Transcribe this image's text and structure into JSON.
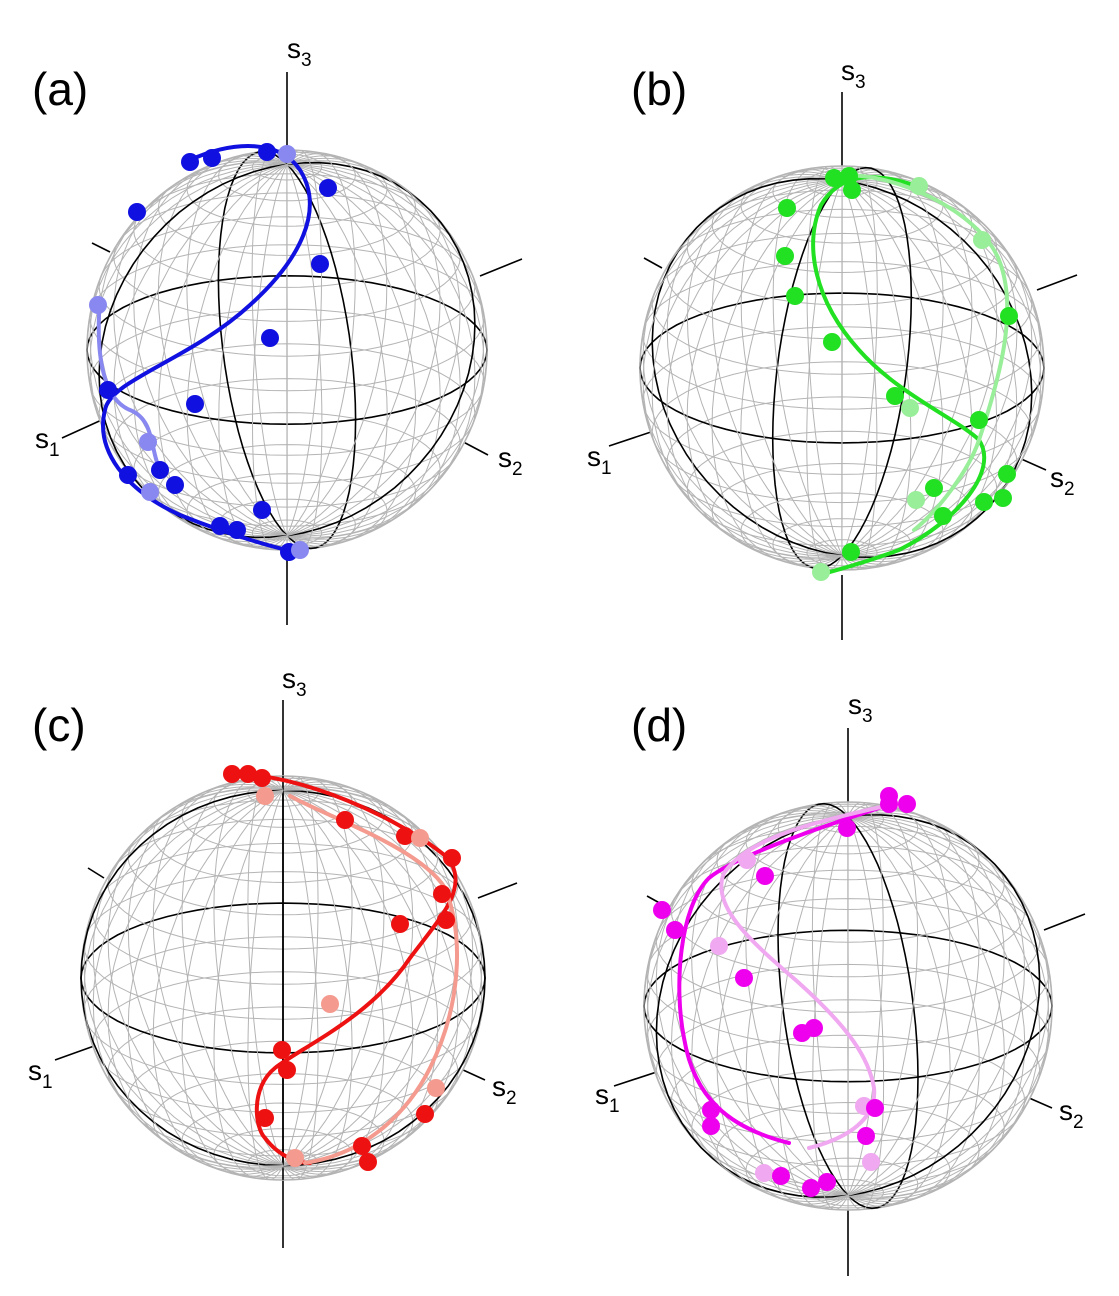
{
  "panels": [
    {
      "label": "(a)",
      "color": "#1010e0",
      "faint": "#8888f0"
    },
    {
      "label": "(b)",
      "color": "#22e022",
      "faint": "#99ee99"
    },
    {
      "label": "(c)",
      "color": "#ee1111",
      "faint": "#f49a8e"
    },
    {
      "label": "(d)",
      "color": "#ee00ee",
      "faint": "#f0a8f0"
    }
  ],
  "axes": {
    "s1": {
      "letter": "s",
      "sub": "1"
    },
    "s2": {
      "letter": "s",
      "sub": "2"
    },
    "s3": {
      "letter": "s",
      "sub": "3"
    }
  },
  "colors": {
    "grid": "#b4b4b4",
    "great_circle": "#000000",
    "axis": "#000000"
  }
}
